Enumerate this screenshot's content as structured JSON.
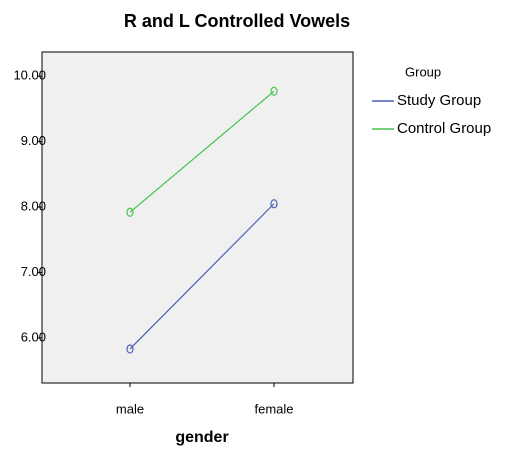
{
  "chart_data": {
    "type": "line",
    "title": "R and L Controlled Vowels",
    "x_label": "gender",
    "categories": [
      "male",
      "female"
    ],
    "series": [
      {
        "name": "Study Group",
        "color": "#4a5fb8",
        "values": [
          5.83,
          8.05
        ]
      },
      {
        "name": "Control Group",
        "color": "#4cc24c",
        "values": [
          7.92,
          9.77
        ]
      }
    ],
    "legend_title": "Group",
    "ylim": [
      5.31,
      10.37
    ],
    "yticks": [
      {
        "value": 6,
        "label": "6.00"
      },
      {
        "value": 7,
        "label": "7.00"
      },
      {
        "value": 8,
        "label": "8.00"
      },
      {
        "value": 9,
        "label": "9.00"
      },
      {
        "value": 10,
        "label": "10.00"
      }
    ]
  }
}
